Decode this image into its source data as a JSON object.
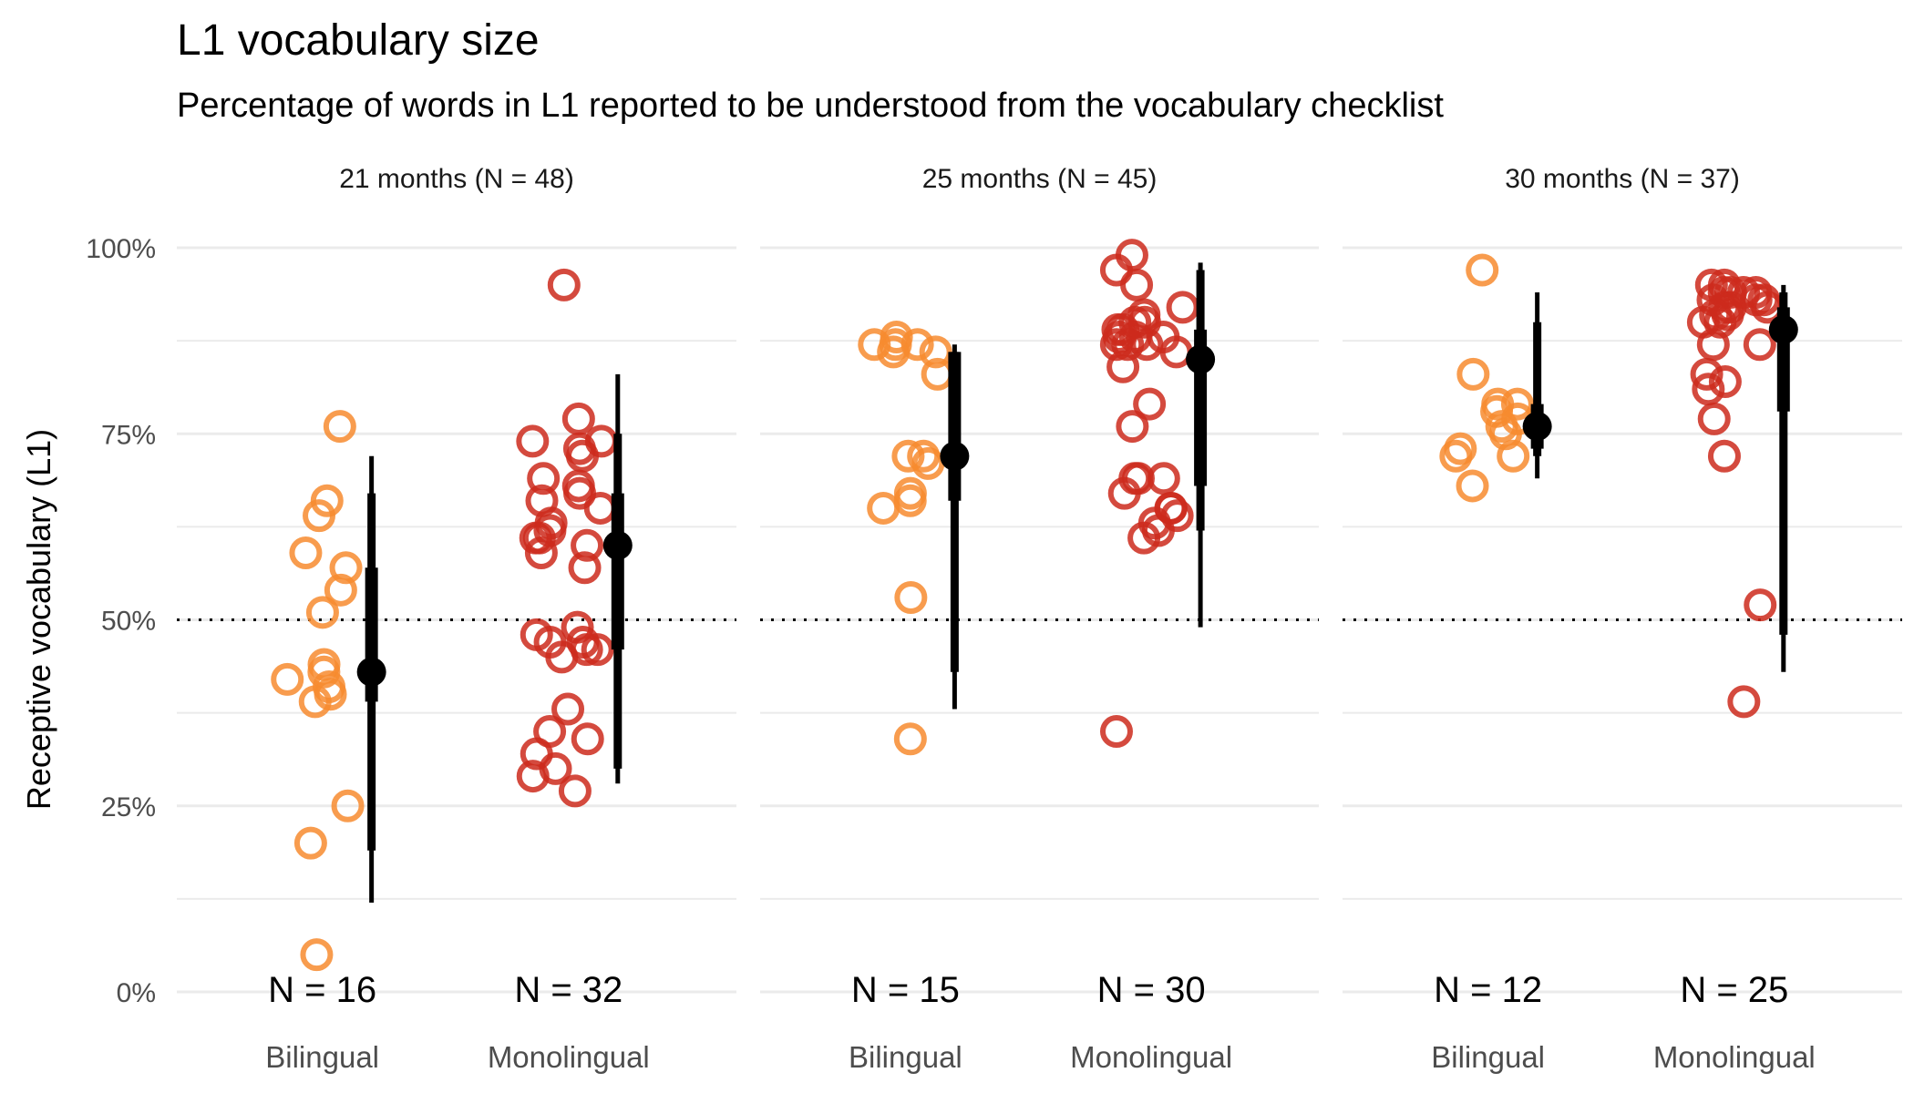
{
  "chart_data": {
    "type": "scatter",
    "title": "L1 vocabulary size",
    "subtitle": "Percentage of words in L1 reported to be understood from the vocabulary checklist",
    "ylabel": "Receptive vocabulary (L1)",
    "xlabel": "",
    "ylim": [
      0,
      100
    ],
    "y_ticks": [
      "0%",
      "25%",
      "50%",
      "75%",
      "100%"
    ],
    "y_tick_values": [
      0,
      25,
      50,
      75,
      100
    ],
    "reference_line": 50,
    "grid": true,
    "colors": {
      "Bilingual": "#f78b2f",
      "Monolingual": "#cc2a1c",
      "Monolingual_alt": "#d42e0e",
      "summary": "#000000",
      "grid": "#ebebeb"
    },
    "categories": [
      "Bilingual",
      "Monolingual"
    ],
    "facets": [
      {
        "label": "21 months (N = 48)",
        "groups": [
          {
            "name": "Bilingual",
            "n_label": "N = 16",
            "values": [
              76,
              66,
              64,
              59,
              57,
              54,
              51,
              44,
              43,
              42,
              41,
              40,
              39,
              25,
              20,
              5
            ],
            "summary": {
              "median": 43,
              "q_inner": [
                39,
                57
              ],
              "q_mid": [
                19,
                67
              ],
              "q_outer": [
                12,
                72
              ]
            }
          },
          {
            "name": "Monolingual",
            "n_label": "N = 32",
            "values": [
              95,
              77,
              74,
              73,
              72,
              69,
              68,
              67,
              66,
              65,
              63,
              61,
              60,
              59,
              57,
              49,
              48,
              47,
              46,
              46,
              45,
              38,
              34,
              32,
              30,
              29,
              27,
              74,
              61,
              47,
              35,
              62
            ],
            "summary": {
              "median": 60,
              "q_inner": [
                46,
                67
              ],
              "q_mid": [
                30,
                75
              ],
              "q_outer": [
                28,
                83
              ]
            }
          }
        ]
      },
      {
        "label": "25 months (N = 45)",
        "groups": [
          {
            "name": "Bilingual",
            "n_label": "N = 15",
            "values": [
              87,
              87,
              86,
              83,
              72,
              67,
              66,
              53,
              34,
              88,
              86,
              71,
              65,
              72,
              87
            ],
            "summary": {
              "median": 72,
              "q_inner": [
                66,
                86
              ],
              "q_mid": [
                43,
                86
              ],
              "q_outer": [
                38,
                87
              ]
            }
          },
          {
            "name": "Monolingual",
            "n_label": "N = 30",
            "values": [
              99,
              97,
              95,
              91,
              90,
              89,
              88,
              87,
              87,
              84,
              79,
              76,
              69,
              69,
              67,
              65,
              64,
              62,
              61,
              35,
              90,
              86,
              88,
              92,
              88,
              69,
              65,
              63,
              89,
              87
            ],
            "summary": {
              "median": 85,
              "q_inner": [
                68,
                89
              ],
              "q_mid": [
                62,
                97
              ],
              "q_outer": [
                49,
                98
              ]
            }
          }
        ]
      },
      {
        "label": "30 months (N = 37)",
        "groups": [
          {
            "name": "Bilingual",
            "n_label": "N = 12",
            "values": [
              97,
              83,
              79,
              78,
              77,
              76,
              73,
              72,
              72,
              68,
              75,
              79
            ],
            "summary": {
              "median": 76,
              "q_inner": [
                73,
                79
              ],
              "q_mid": [
                72,
                90
              ],
              "q_outer": [
                69,
                94
              ]
            }
          },
          {
            "name": "Monolingual",
            "n_label": "N = 25",
            "values": [
              95,
              94,
              94,
              93,
              92,
              91,
              90,
              87,
              83,
              81,
              77,
              72,
              52,
              39,
              93,
              92,
              95,
              91,
              94,
              92,
              90,
              82,
              87,
              94,
              93
            ],
            "summary": {
              "median": 89,
              "q_inner": [
                78,
                92
              ],
              "q_mid": [
                48,
                94
              ],
              "q_outer": [
                43,
                95
              ]
            }
          }
        ]
      }
    ]
  }
}
